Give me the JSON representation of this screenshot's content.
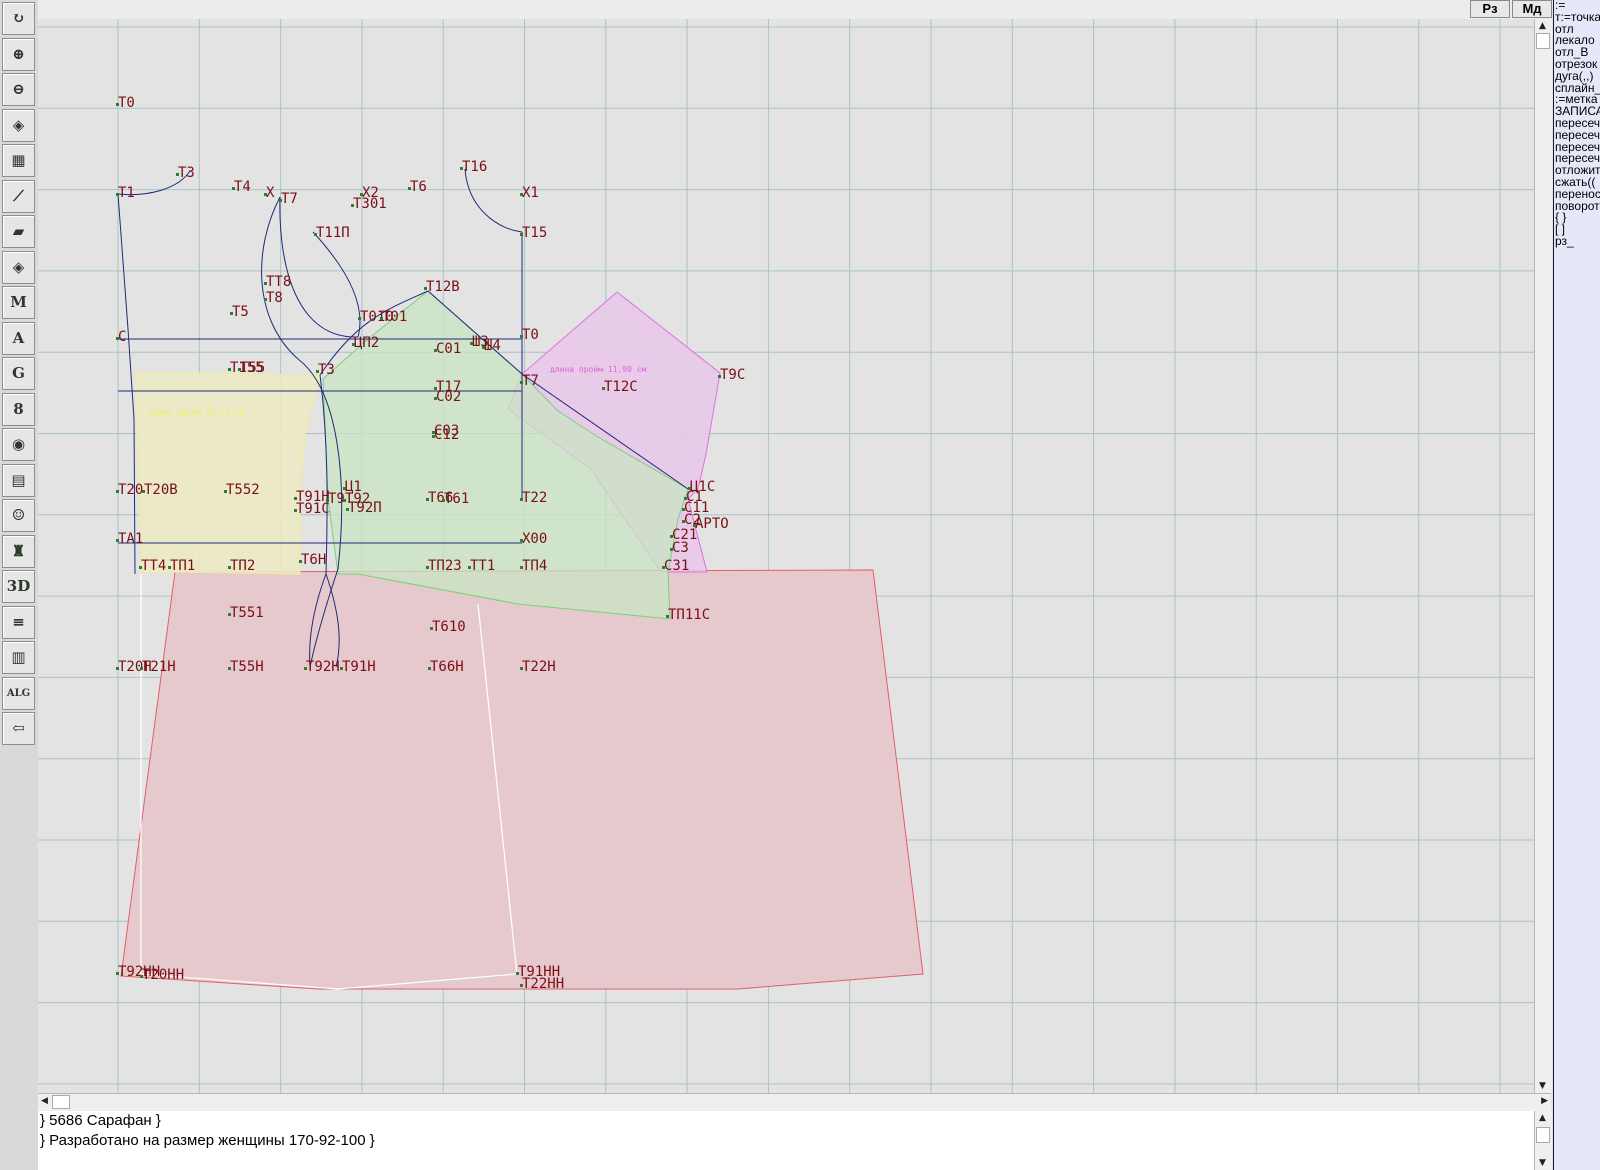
{
  "toolbar": {
    "buttons": [
      {
        "name": "refresh-icon",
        "glyph": "↻"
      },
      {
        "name": "zoom-in-icon",
        "glyph": "⊕"
      },
      {
        "name": "zoom-out-icon",
        "glyph": "⊖"
      },
      {
        "name": "pattern-icon",
        "glyph": "◈"
      },
      {
        "name": "grid-icon",
        "glyph": "▦"
      },
      {
        "name": "line-tool-icon",
        "glyph": "⟋"
      },
      {
        "name": "layer-icon",
        "glyph": "▰"
      },
      {
        "name": "pattern-edit-icon",
        "glyph": "◈"
      },
      {
        "name": "measure-m-icon",
        "glyph": "M"
      },
      {
        "name": "compass-icon",
        "glyph": "A"
      },
      {
        "name": "graded-g-icon",
        "glyph": "G"
      },
      {
        "name": "ruler-icon",
        "glyph": "8"
      },
      {
        "name": "camera-icon",
        "glyph": "◉"
      },
      {
        "name": "table-icon",
        "glyph": "▤"
      },
      {
        "name": "avatar-icon",
        "glyph": "☺"
      },
      {
        "name": "jacket-icon",
        "glyph": "♜"
      },
      {
        "name": "3d-icon",
        "glyph": "3D"
      },
      {
        "name": "document-icon",
        "glyph": "≡"
      },
      {
        "name": "layers-stack-icon",
        "glyph": "▥"
      },
      {
        "name": "alg-icon",
        "glyph": "ALG"
      },
      {
        "name": "exit-icon",
        "glyph": "⇦"
      }
    ]
  },
  "topbar": {
    "rz_label": "Рз",
    "md_label": "Мд"
  },
  "command_panel": {
    "items": [
      ":=",
      "т:=точка",
      "отл",
      "лекало",
      "отл_В",
      "отрезок",
      "дуга(,,)",
      "сплайн_",
      ":=метка",
      "ЗАПИСА",
      "пересеч",
      "пересеч",
      "пересеч",
      "пересеч",
      "отложит",
      "сжать((",
      "перенос",
      "поворот",
      "{ }",
      "[ ]",
      "рз_"
    ]
  },
  "console": {
    "line1": "}   5686  Сарафан }",
    "line2": "} Разработано на размер женщины 170-92-100 }"
  },
  "drawing": {
    "colors": {
      "grid": "#a8c4c4",
      "construction": "#1f2a78",
      "label": "#7a0f15",
      "skirt_fill": "#e6c9cc",
      "skirt_stroke": "#e15f6a",
      "sleeve_fill": "#e8c8e8",
      "sleeve_stroke": "#e070e0",
      "bodice_fill": "#c9e4c4",
      "bodice_stroke": "#7ad07a",
      "back_fill": "#ece9c4",
      "back_stroke": "#eded9c",
      "pink_text": "#e060d8",
      "yellow_text": "#f0f060"
    },
    "labels": [
      "Т0",
      "Т1",
      "Т3",
      "Т4",
      "Х",
      "Т7",
      "Х2",
      "Т6",
      "Т301",
      "Т16",
      "Х1",
      "Т11П",
      "Т15",
      "ТТ8",
      "Т8",
      "Т5",
      "Т12В",
      "Т010",
      "Т01",
      "С",
      "ЦП2",
      "С01",
      "Ш3",
      "Ш4",
      "Т0",
      "Т155",
      "Т55",
      "Т3",
      "Т7",
      "Т12С",
      "Т9С",
      "Т17",
      "С02",
      "С03",
      "С12",
      "Т20",
      "Т20В",
      "Т552",
      "Т91Н",
      "Т9",
      "Т92",
      "Т91С",
      "Т92П",
      "Т66",
      "Т61",
      "Т22",
      "Ц1",
      "Ц1С",
      "С1",
      "С11",
      "С2",
      "АРТО",
      "ТА1",
      "Х00",
      "С21",
      "С3",
      "ТТ4",
      "ТП1",
      "ТП2",
      "Т6Н",
      "ТП23",
      "ТТ1",
      "ТП4",
      "С31",
      "ТП11С",
      "Т551",
      "Т610",
      "Т20Н",
      "Т21Н",
      "Т55Н",
      "Т92Н",
      "Т91Н",
      "Т66Н",
      "Т22Н",
      "Т92НН",
      "Т20НН",
      "Т91НН",
      "Т22НН"
    ],
    "sleeve_note": "длина пройм  11,90   см",
    "back_note": "длина пройм 40,15   см"
  }
}
